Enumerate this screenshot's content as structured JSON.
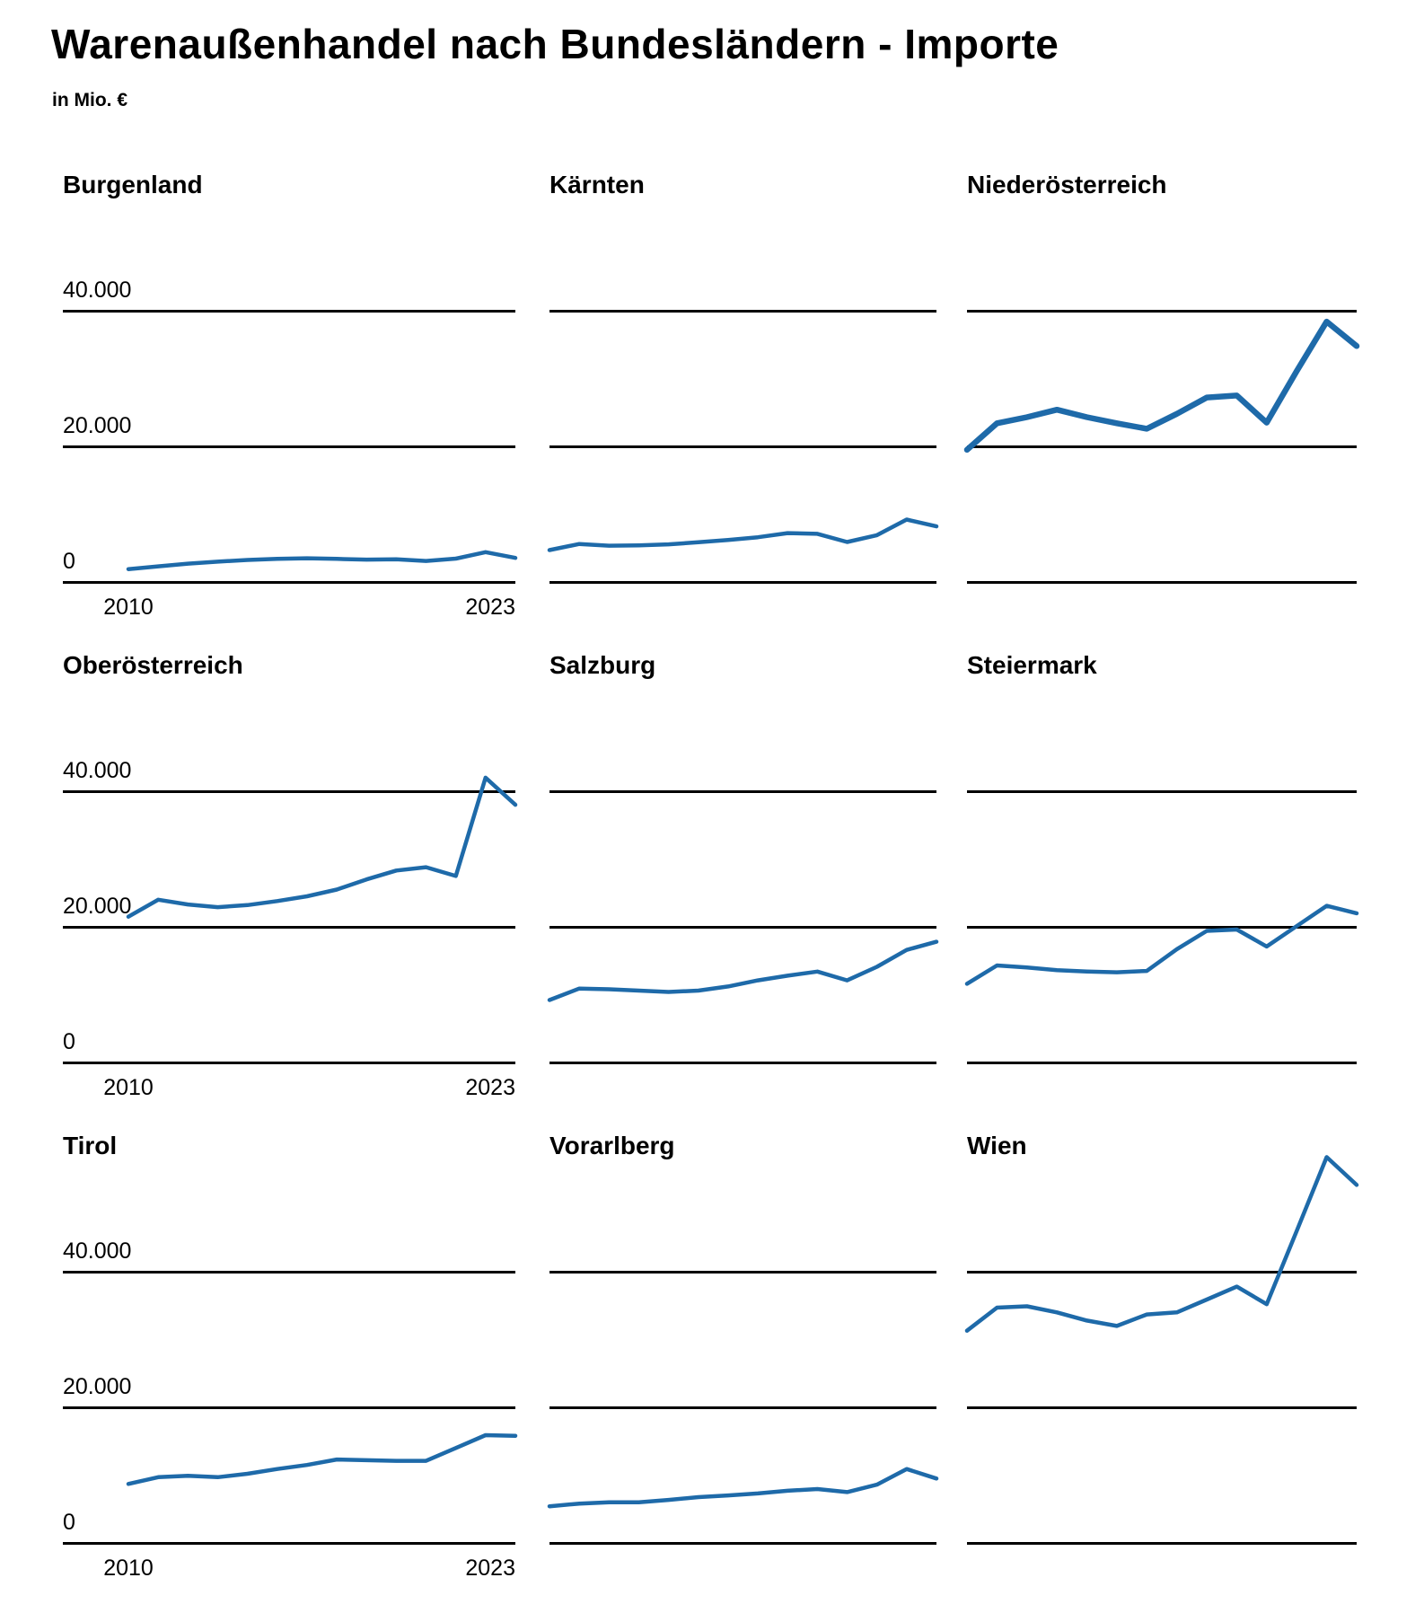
{
  "header": {
    "title": "Warenaußenhandel nach Bundesländern - Importe",
    "subtitle": "in Mio. €"
  },
  "chart_data": {
    "type": "line",
    "title": "Warenaußenhandel nach Bundesländern - Importe",
    "subtitle": "in Mio. €",
    "unit": "Mio. €",
    "x": [
      2010,
      2011,
      2012,
      2013,
      2014,
      2015,
      2016,
      2017,
      2018,
      2019,
      2020,
      2021,
      2022,
      2023
    ],
    "x_axis": {
      "first_label": "2010",
      "last_label": "2023"
    },
    "y_axis": {
      "ticks": [
        "0",
        "20.000",
        "40.000"
      ],
      "tick_values": [
        0,
        20000,
        40000
      ],
      "ylim": [
        0,
        60000
      ],
      "grid": "horizontal"
    },
    "layout_hint": "3x3 small multiples, y labels and x labels only on first column",
    "line_color": "#1e6aa9",
    "highlight_series": "Niederösterreich",
    "series": [
      {
        "name": "Burgenland",
        "values": [
          1900,
          2300,
          2700,
          3000,
          3250,
          3400,
          3500,
          3400,
          3300,
          3350,
          3100,
          3450,
          4400,
          3550
        ]
      },
      {
        "name": "Kärnten",
        "values": [
          4700,
          5600,
          5350,
          5400,
          5550,
          5850,
          6200,
          6600,
          7200,
          7100,
          5900,
          6900,
          9200,
          8200
        ]
      },
      {
        "name": "Niederösterreich",
        "values": [
          19500,
          23400,
          24300,
          25400,
          24300,
          23400,
          22600,
          24800,
          27200,
          27500,
          23500,
          31100,
          38400,
          34800
        ]
      },
      {
        "name": "Oberösterreich",
        "values": [
          21500,
          24000,
          23300,
          22900,
          23200,
          23800,
          24500,
          25500,
          27000,
          28300,
          28800,
          27500,
          42000,
          38000
        ]
      },
      {
        "name": "Salzburg",
        "values": [
          9200,
          10900,
          10800,
          10600,
          10400,
          10600,
          11200,
          12100,
          12800,
          13400,
          12100,
          14100,
          16600,
          17800
        ]
      },
      {
        "name": "Steiermark",
        "values": [
          11600,
          14300,
          14000,
          13600,
          13400,
          13300,
          13500,
          16700,
          19400,
          19600,
          17100,
          20100,
          23100,
          22000
        ]
      },
      {
        "name": "Tirol",
        "values": [
          8700,
          9700,
          9900,
          9700,
          10200,
          10900,
          11500,
          12300,
          12200,
          12100,
          12100,
          14000,
          15900,
          15800
        ]
      },
      {
        "name": "Vorarlberg",
        "values": [
          5400,
          5800,
          6000,
          6000,
          6350,
          6750,
          7000,
          7300,
          7700,
          7950,
          7500,
          8600,
          10900,
          9500
        ]
      },
      {
        "name": "Wien",
        "values": [
          31300,
          34700,
          34900,
          34000,
          32800,
          32000,
          33700,
          34000,
          35900,
          37800,
          35200,
          46000,
          56900,
          52800
        ]
      }
    ]
  }
}
